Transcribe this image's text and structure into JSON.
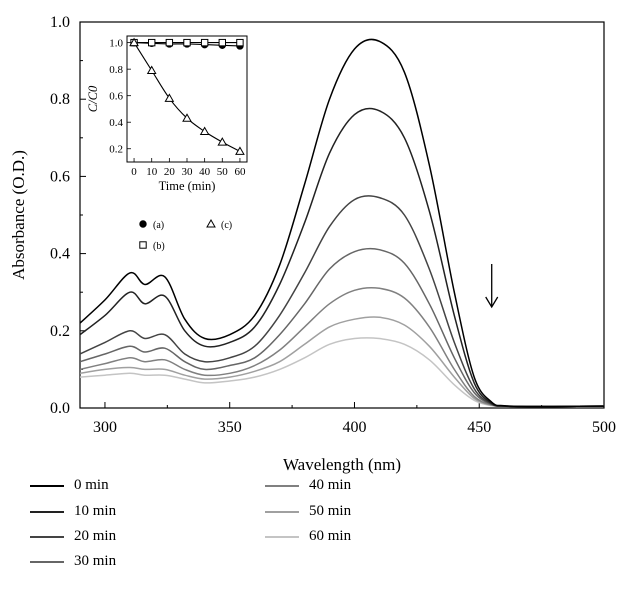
{
  "chart_data": [
    {
      "type": "line",
      "xlabel": "Wavelength (nm)",
      "ylabel": "Absorbance (O.D.)",
      "xlim": [
        290,
        500
      ],
      "ylim": [
        0,
        1.0
      ],
      "x_ticks": [
        "300",
        "350",
        "400",
        "450",
        "500"
      ],
      "y_ticks": [
        "0.0",
        "0.2",
        "0.4",
        "0.6",
        "0.8",
        "1.0"
      ],
      "annotation": "downward arrow at about 455 nm indicating decreasing absorbance",
      "x": [
        290,
        300,
        310,
        316,
        324,
        332,
        340,
        350,
        360,
        370,
        380,
        390,
        400,
        410,
        420,
        430,
        440,
        448,
        455,
        460,
        470,
        480,
        500
      ],
      "series": [
        {
          "name": "0 min",
          "color": "#000000",
          "values": [
            0.22,
            0.28,
            0.35,
            0.32,
            0.34,
            0.23,
            0.18,
            0.19,
            0.24,
            0.37,
            0.58,
            0.8,
            0.93,
            0.95,
            0.87,
            0.63,
            0.3,
            0.08,
            0.015,
            0.006,
            0.004,
            0.004,
            0.005
          ]
        },
        {
          "name": "10 min",
          "color": "#222222",
          "values": [
            0.19,
            0.24,
            0.3,
            0.27,
            0.29,
            0.2,
            0.16,
            0.17,
            0.21,
            0.32,
            0.48,
            0.66,
            0.76,
            0.77,
            0.7,
            0.51,
            0.24,
            0.065,
            0.012,
            0.005,
            0.004,
            0.004,
            0.005
          ]
        },
        {
          "name": "20 min",
          "color": "#444444",
          "values": [
            0.14,
            0.17,
            0.2,
            0.18,
            0.19,
            0.14,
            0.12,
            0.13,
            0.16,
            0.24,
            0.35,
            0.47,
            0.54,
            0.545,
            0.5,
            0.36,
            0.17,
            0.05,
            0.01,
            0.005,
            0.004,
            0.004,
            0.005
          ]
        },
        {
          "name": "30 min",
          "color": "#666666",
          "values": [
            0.12,
            0.14,
            0.16,
            0.145,
            0.155,
            0.12,
            0.1,
            0.11,
            0.13,
            0.19,
            0.27,
            0.36,
            0.405,
            0.41,
            0.375,
            0.27,
            0.13,
            0.04,
            0.009,
            0.005,
            0.004,
            0.004,
            0.005
          ]
        },
        {
          "name": "40 min",
          "color": "#808080",
          "values": [
            0.1,
            0.115,
            0.13,
            0.12,
            0.125,
            0.1,
            0.085,
            0.09,
            0.11,
            0.15,
            0.21,
            0.27,
            0.305,
            0.31,
            0.285,
            0.21,
            0.1,
            0.03,
            0.008,
            0.005,
            0.004,
            0.004,
            0.005
          ]
        },
        {
          "name": "50 min",
          "color": "#a0a0a0",
          "values": [
            0.09,
            0.1,
            0.105,
            0.1,
            0.1,
            0.085,
            0.075,
            0.08,
            0.095,
            0.12,
            0.165,
            0.21,
            0.23,
            0.235,
            0.215,
            0.16,
            0.08,
            0.025,
            0.007,
            0.005,
            0.004,
            0.004,
            0.005
          ]
        },
        {
          "name": "60 min",
          "color": "#c4c4c4",
          "values": [
            0.08,
            0.085,
            0.09,
            0.085,
            0.085,
            0.075,
            0.065,
            0.07,
            0.08,
            0.1,
            0.13,
            0.165,
            0.18,
            0.18,
            0.165,
            0.125,
            0.06,
            0.02,
            0.006,
            0.005,
            0.004,
            0.004,
            0.005
          ]
        }
      ]
    },
    {
      "type": "scatter",
      "xlabel": "Time (min)",
      "ylabel": "C/C0",
      "xlim": [
        -4,
        64
      ],
      "ylim": [
        0.1,
        1.05
      ],
      "x_ticks": [
        "0",
        "10",
        "20",
        "30",
        "40",
        "50",
        "60"
      ],
      "y_ticks": [
        "0.2",
        "0.4",
        "0.6",
        "0.8",
        "1.0"
      ],
      "x": [
        0,
        10,
        20,
        30,
        40,
        50,
        60
      ],
      "series": [
        {
          "name": "(a)",
          "marker": "filled-circle",
          "values": [
            1.0,
            0.995,
            0.99,
            0.99,
            0.985,
            0.98,
            0.975
          ]
        },
        {
          "name": "(b)",
          "marker": "open-square",
          "values": [
            1.0,
            1.0,
            1.0,
            1.0,
            1.0,
            1.0,
            1.0
          ]
        },
        {
          "name": "(c)",
          "marker": "open-triangle",
          "values": [
            1.0,
            0.79,
            0.58,
            0.43,
            0.33,
            0.25,
            0.18
          ]
        }
      ]
    }
  ]
}
